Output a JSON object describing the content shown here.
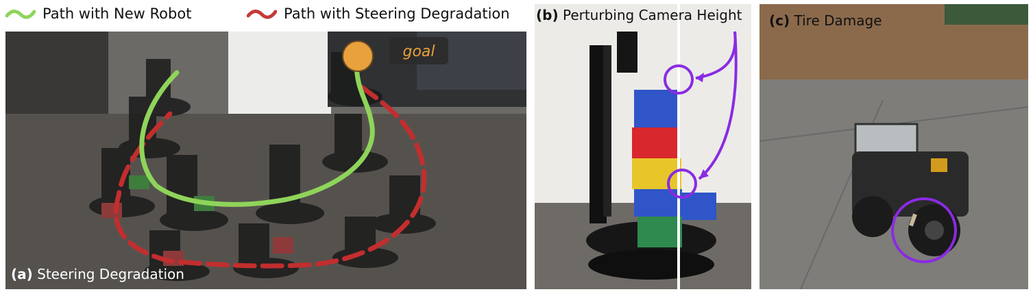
{
  "legend": {
    "new_robot": "Path with New Robot",
    "steering": "Path with Steering Degradation",
    "new_robot_color": "#8fd45a",
    "steering_color": "#c43a3a"
  },
  "panel_a": {
    "tag": "(a)",
    "caption": "Steering Degradation",
    "goal_label": "goal"
  },
  "panel_b": {
    "tag": "(b)",
    "caption": "Perturbing Camera Height"
  },
  "panel_c": {
    "tag": "(c)",
    "caption": "Tire Damage"
  },
  "colors": {
    "highlight": "#8a2be2",
    "goal": "#e8a13c"
  }
}
